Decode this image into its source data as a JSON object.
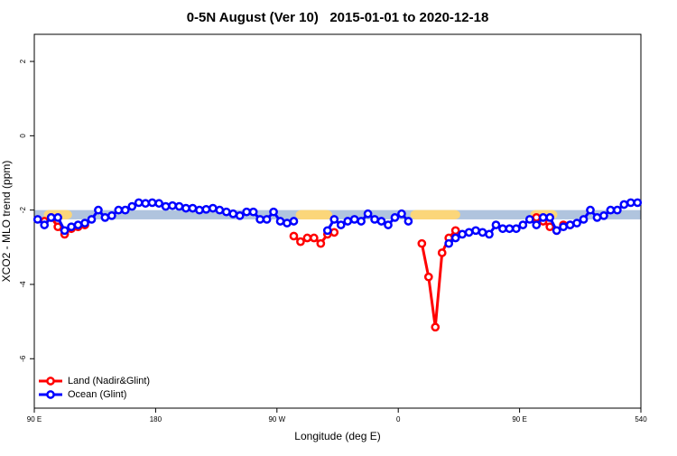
{
  "chart_data": {
    "type": "line",
    "title": "0-5N August (Ver 10)   2015-01-01 to 2020-12-18",
    "x_label": "Longitude (deg E)",
    "y_label": "XCO2 - MLO trend (ppm)",
    "xlim": [
      90,
      540
    ],
    "xticks": [
      {
        "value": 90,
        "label": "90 E"
      },
      180,
      {
        "value": 270,
        "label": "90 W"
      },
      {
        "value": 360,
        "label": "0"
      },
      {
        "value": 450,
        "label": "90 E"
      },
      540
    ],
    "ylim": [
      -7.33,
      2.73
    ],
    "yticks": [
      -6,
      -4,
      -2,
      0,
      2
    ],
    "legend": "bottom-left",
    "ocean_band": [
      -2.25,
      -2.0
    ],
    "ocean_band_color": "#b0c4de",
    "land_spans": [
      [
        97,
        118
      ],
      [
        284,
        311
      ],
      [
        369,
        406
      ],
      [
        458,
        478
      ]
    ],
    "land_color": "#fbd67a",
    "x": [
      92.5,
      97.5,
      102.5,
      107.5,
      112.5,
      117.5,
      122.5,
      127.5,
      132.5,
      137.5,
      142.5,
      147.5,
      152.5,
      157.5,
      162.5,
      167.5,
      172.5,
      177.5,
      182.5,
      187.5,
      192.5,
      197.5,
      202.5,
      207.5,
      212.5,
      217.5,
      222.5,
      227.5,
      232.5,
      237.5,
      242.5,
      247.5,
      252.5,
      257.5,
      262.5,
      267.5,
      272.5,
      277.5,
      282.5,
      287.5,
      292.5,
      297.5,
      302.5,
      307.5,
      312.5,
      317.5,
      322.5,
      327.5,
      332.5,
      337.5,
      342.5,
      347.5,
      352.5,
      357.5,
      362.5,
      367.5,
      372.5,
      377.5,
      382.5,
      387.5,
      392.5,
      397.5,
      402.5,
      407.5,
      412.5,
      417.5,
      422.5,
      427.5,
      432.5,
      437.5,
      442.5,
      447.5,
      452.5,
      457.5,
      462.5,
      467.5,
      472.5,
      477.5,
      482.5,
      487.5,
      492.5,
      497.5,
      502.5,
      507.5,
      512.5,
      517.5,
      522.5,
      527.5,
      532.5,
      537.5
    ],
    "series": [
      {
        "name": "Land (Nadir&Glint)",
        "color": "#ff0000",
        "values": [
          null,
          -2.3,
          -2.2,
          -2.45,
          -2.65,
          -2.5,
          -2.45,
          -2.4,
          null,
          null,
          null,
          null,
          null,
          null,
          null,
          null,
          null,
          null,
          null,
          null,
          null,
          null,
          null,
          null,
          null,
          null,
          null,
          null,
          null,
          null,
          null,
          null,
          null,
          null,
          null,
          null,
          null,
          null,
          -2.7,
          -2.85,
          -2.75,
          -2.75,
          -2.9,
          -2.65,
          -2.6,
          null,
          null,
          null,
          null,
          null,
          null,
          null,
          null,
          null,
          null,
          null,
          null,
          -2.9,
          -3.8,
          -5.15,
          -3.15,
          -2.75,
          -2.55,
          null,
          null,
          null,
          null,
          null,
          null,
          null,
          null,
          null,
          null,
          null,
          -2.2,
          -2.3,
          -2.45,
          -2.55,
          -2.4,
          -2.4,
          null,
          null,
          null,
          null,
          null,
          null,
          null,
          null,
          null,
          null
        ]
      },
      {
        "name": "Ocean (Glint)",
        "color": "#0000ff",
        "values": [
          -2.25,
          -2.4,
          -2.2,
          -2.2,
          -2.55,
          -2.45,
          -2.4,
          -2.35,
          -2.25,
          -2.0,
          -2.2,
          -2.15,
          -2.0,
          -2.0,
          -1.9,
          -1.8,
          -1.82,
          -1.8,
          -1.82,
          -1.9,
          -1.88,
          -1.9,
          -1.95,
          -1.95,
          -2.0,
          -1.98,
          -1.95,
          -2.0,
          -2.05,
          -2.1,
          -2.15,
          -2.05,
          -2.05,
          -2.25,
          -2.25,
          -2.05,
          -2.3,
          -2.35,
          -2.3,
          null,
          null,
          null,
          null,
          -2.55,
          -2.25,
          -2.4,
          -2.3,
          -2.25,
          -2.3,
          -2.1,
          -2.25,
          -2.3,
          -2.4,
          -2.2,
          -2.1,
          -2.3,
          null,
          null,
          null,
          null,
          null,
          -2.9,
          -2.75,
          -2.65,
          -2.6,
          -2.55,
          -2.6,
          -2.65,
          -2.4,
          -2.5,
          -2.5,
          -2.5,
          -2.4,
          -2.25,
          -2.4,
          -2.2,
          -2.2,
          -2.55,
          -2.45,
          -2.4,
          -2.35,
          -2.25,
          -2.0,
          -2.2,
          -2.15,
          -2.0,
          -2.0,
          -1.85,
          -1.8,
          -1.8
        ]
      }
    ]
  }
}
